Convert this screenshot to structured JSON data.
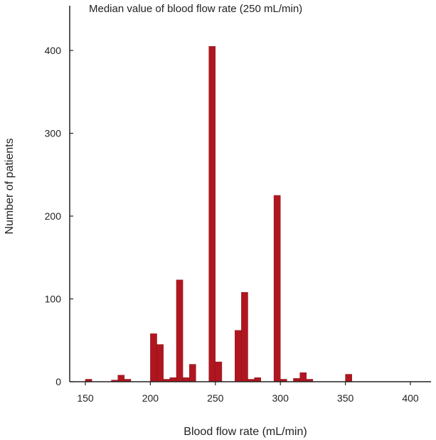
{
  "chart_data": {
    "type": "bar",
    "title": "Median value of blood flow rate (250 mL/min)",
    "xlabel": "Blood flow rate (mL/min)",
    "ylabel": "Number of patients",
    "xlim": [
      140,
      410
    ],
    "ylim": [
      0,
      450
    ],
    "xticks": [
      150,
      200,
      250,
      300,
      350,
      400
    ],
    "yticks": [
      0,
      100,
      200,
      300,
      400
    ],
    "bin_width": 5,
    "bar_color": "#b01620",
    "grid": false,
    "legend": "none",
    "bins": [
      {
        "x": 150,
        "value": 3
      },
      {
        "x": 170,
        "value": 2
      },
      {
        "x": 175,
        "value": 8
      },
      {
        "x": 180,
        "value": 3
      },
      {
        "x": 200,
        "value": 58
      },
      {
        "x": 205,
        "value": 45
      },
      {
        "x": 210,
        "value": 3
      },
      {
        "x": 215,
        "value": 5
      },
      {
        "x": 220,
        "value": 123
      },
      {
        "x": 225,
        "value": 5
      },
      {
        "x": 230,
        "value": 21
      },
      {
        "x": 245,
        "value": 405
      },
      {
        "x": 250,
        "value": 24
      },
      {
        "x": 265,
        "value": 62
      },
      {
        "x": 270,
        "value": 108
      },
      {
        "x": 275,
        "value": 3
      },
      {
        "x": 280,
        "value": 5
      },
      {
        "x": 295,
        "value": 225
      },
      {
        "x": 300,
        "value": 3
      },
      {
        "x": 310,
        "value": 4
      },
      {
        "x": 315,
        "value": 11
      },
      {
        "x": 320,
        "value": 3
      },
      {
        "x": 350,
        "value": 9
      }
    ]
  }
}
